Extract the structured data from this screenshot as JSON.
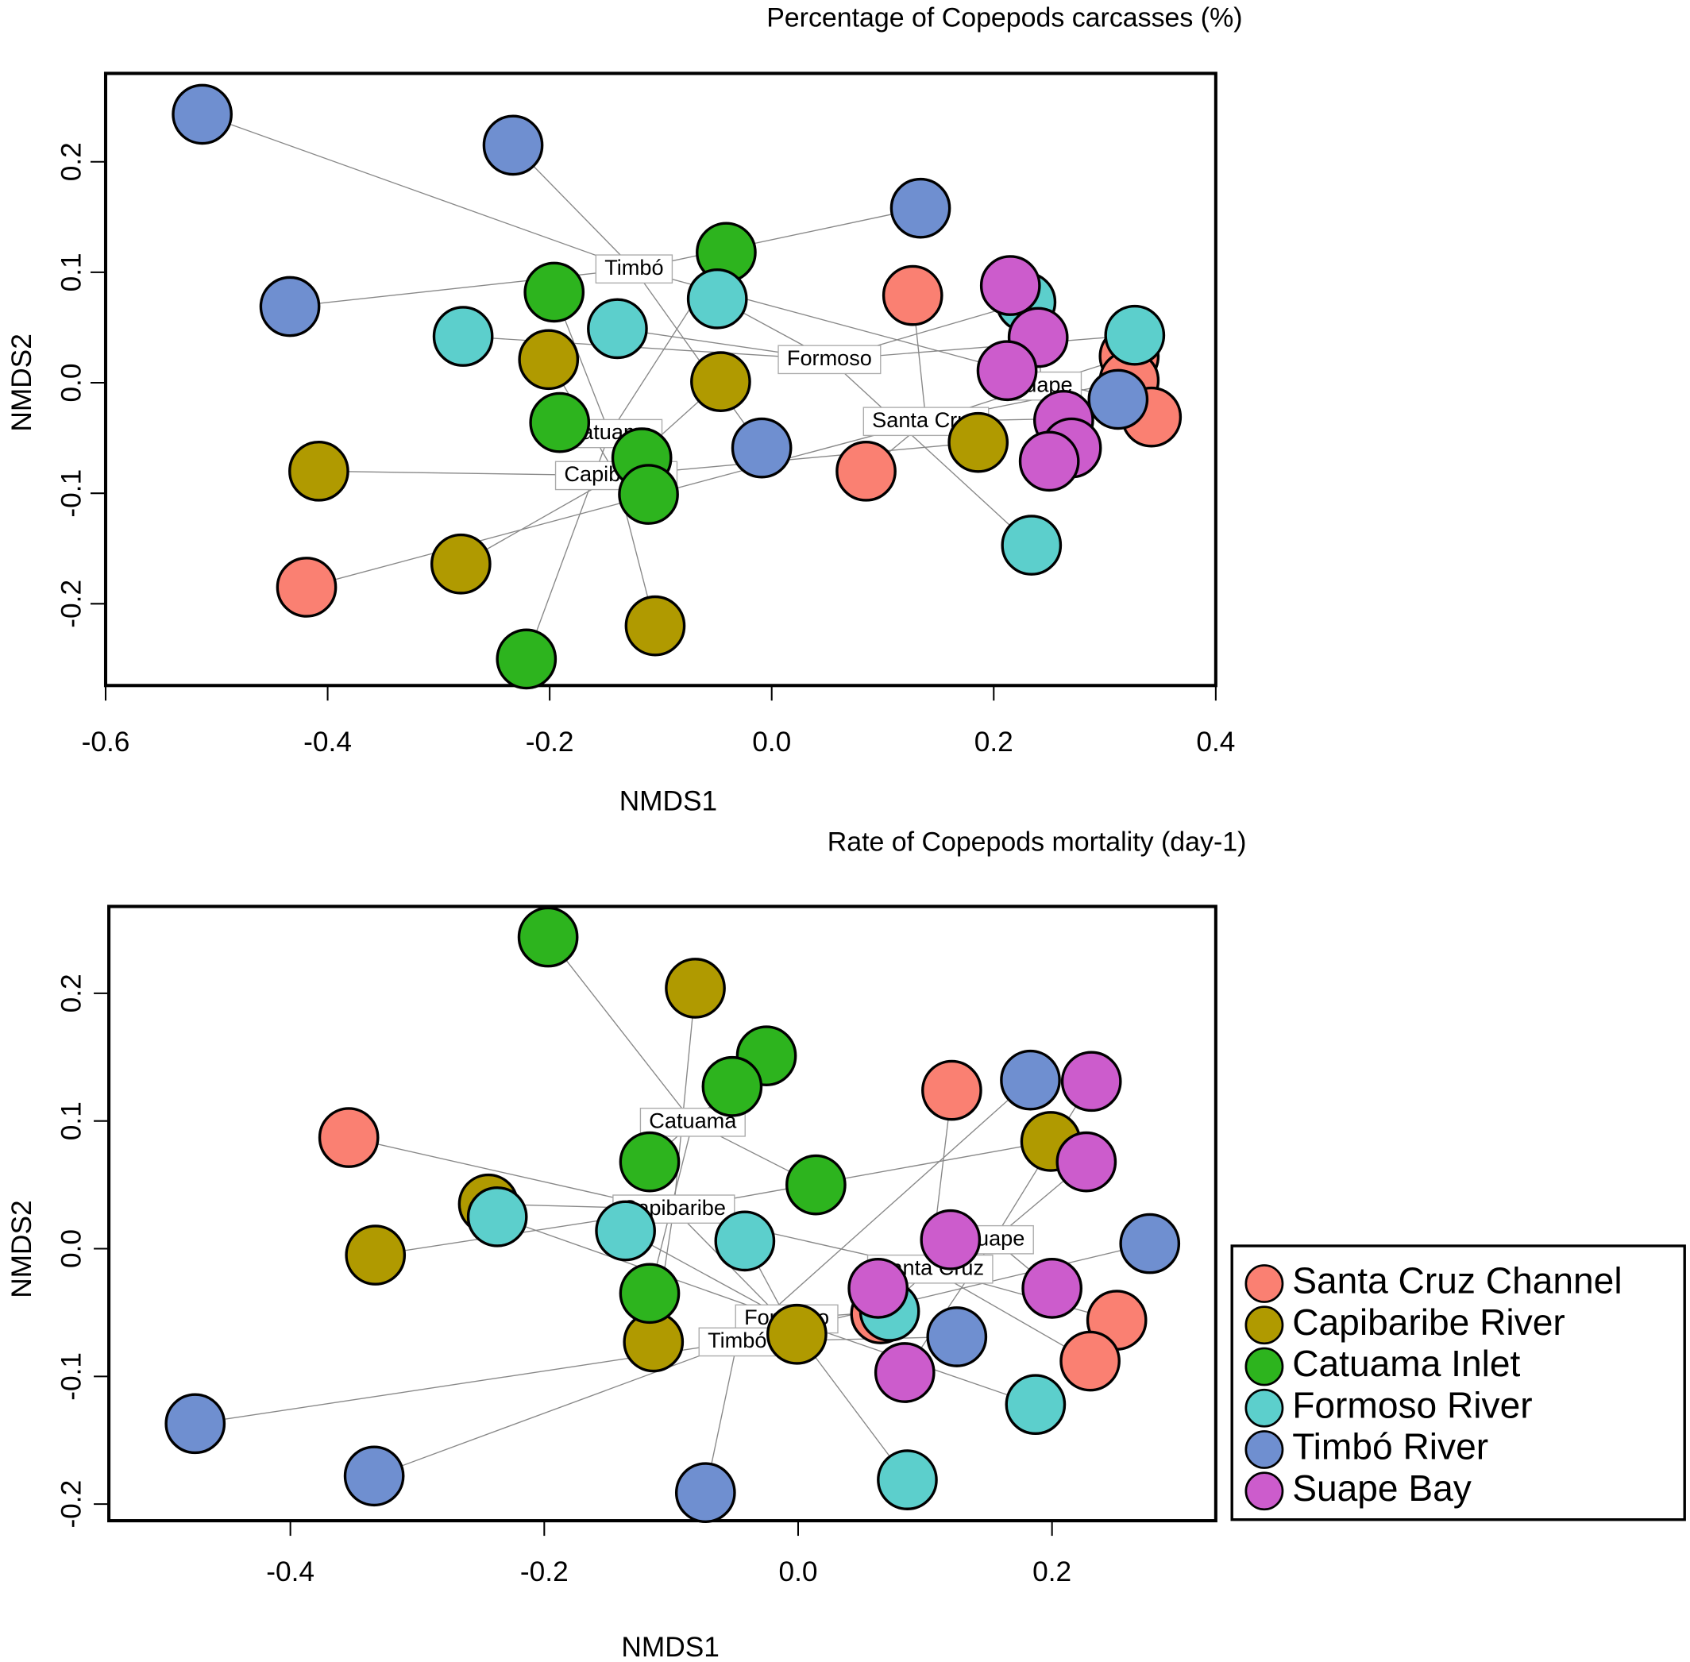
{
  "chart_data": [
    {
      "type": "scatter",
      "title": "Percentage of Copepods carcasses (%)",
      "xlabel": "NMDS1",
      "ylabel": "NMDS2",
      "xlim": [
        -0.6,
        0.4
      ],
      "ylim": [
        -0.274,
        0.28
      ],
      "xticks": [
        -0.6,
        -0.4,
        -0.2,
        {
          "value": 0,
          "label": "0.0"
        },
        0.2,
        0.4
      ],
      "yticks": [
        -0.2,
        -0.1,
        {
          "value": 0,
          "label": "0.0"
        },
        0.1,
        0.2
      ],
      "series": [
        {
          "color": "#fa8072",
          "centroid": {
            "label": "Santa Cruz",
            "x": 0.139,
            "y": -0.035
          },
          "x": [
            0.127,
            0.085,
            -0.419,
            0.322,
            0.322,
            0.342
          ],
          "y": [
            0.079,
            -0.08,
            -0.185,
            0.024,
            0.002,
            -0.031
          ]
        },
        {
          "color": "#b09a00",
          "centroid": {
            "label": "Capibaribe",
            "x": -0.14,
            "y": -0.084
          },
          "x": [
            -0.408,
            -0.28,
            -0.201,
            -0.046,
            -0.105,
            0.186
          ],
          "y": [
            -0.08,
            -0.164,
            0.021,
            0.001,
            -0.22,
            -0.054
          ]
        },
        {
          "color": "#2db41e",
          "centroid": {
            "label": "Catuama",
            "x": -0.146,
            "y": -0.046
          },
          "x": [
            -0.041,
            -0.196,
            -0.191,
            -0.117,
            -0.111,
            -0.221
          ],
          "y": [
            0.118,
            0.082,
            -0.036,
            -0.068,
            -0.101,
            -0.25
          ]
        },
        {
          "color": "#5ccfcc",
          "centroid": {
            "label": "Formoso",
            "x": 0.052,
            "y": 0.021
          },
          "x": [
            -0.278,
            -0.139,
            -0.049,
            0.229,
            0.327,
            0.234
          ],
          "y": [
            0.042,
            0.049,
            0.076,
            0.073,
            0.043,
            -0.147
          ]
        },
        {
          "color": "#6f8fd0",
          "centroid": {
            "label": "Timbó",
            "x": -0.124,
            "y": 0.103
          },
          "x": [
            -0.513,
            -0.233,
            0.134,
            -0.434,
            -0.009,
            0.312
          ],
          "y": [
            0.243,
            0.215,
            0.158,
            0.069,
            -0.059,
            -0.015
          ]
        },
        {
          "color": "#cc5ccc",
          "centroid": {
            "label": "Suape",
            "x": 0.243,
            "y": -0.003
          },
          "x": [
            0.215,
            0.24,
            0.212,
            0.263,
            0.27,
            0.25
          ],
          "y": [
            0.088,
            0.041,
            0.011,
            -0.034,
            -0.059,
            -0.071
          ]
        }
      ]
    },
    {
      "type": "scatter",
      "title": "Rate of Copepods mortality (day-1)",
      "xlabel": "NMDS1",
      "ylabel": "NMDS2",
      "xlim": [
        -0.543,
        0.329
      ],
      "ylim": [
        -0.213,
        0.268
      ],
      "xticks": [
        -0.4,
        -0.2,
        {
          "value": 0,
          "label": "0.0"
        },
        0.2
      ],
      "yticks": [
        -0.2,
        -0.1,
        {
          "value": 0,
          "label": "0.0"
        },
        0.1,
        0.2
      ],
      "legend": "right",
      "series": [
        {
          "name": "Santa Cruz Channel",
          "color": "#fa8072",
          "centroid": {
            "label": "Santa Cruz",
            "x": 0.104,
            "y": -0.016
          },
          "x": [
            -0.354,
            0.121,
            0.251,
            0.23,
            0.065
          ],
          "y": [
            0.087,
            0.124,
            -0.056,
            -0.088,
            -0.051
          ]
        },
        {
          "name": "Capibaribe River",
          "color": "#b09a00",
          "centroid": {
            "label": "Capibaribe",
            "x": -0.098,
            "y": 0.031
          },
          "x": [
            -0.081,
            -0.244,
            -0.333,
            -0.114,
            -0.001,
            0.199
          ],
          "y": [
            0.204,
            0.035,
            -0.005,
            -0.073,
            -0.067,
            0.084
          ]
        },
        {
          "name": "Catuama Inlet",
          "color": "#2db41e",
          "centroid": {
            "label": "Catuama",
            "x": -0.083,
            "y": 0.099
          },
          "x": [
            -0.197,
            -0.025,
            -0.052,
            -0.117,
            0.014,
            -0.117
          ],
          "y": [
            0.244,
            0.151,
            0.127,
            0.068,
            0.05,
            -0.035
          ]
        },
        {
          "name": "Formoso River",
          "color": "#5ccfcc",
          "centroid": {
            "label": "Formoso",
            "x": -0.009,
            "y": -0.055
          },
          "x": [
            -0.237,
            -0.136,
            -0.042,
            0.072,
            0.187,
            0.086
          ],
          "y": [
            0.025,
            0.014,
            0.006,
            -0.049,
            -0.122,
            -0.181
          ]
        },
        {
          "name": "Timbó River",
          "color": "#6f8fd0",
          "centroid": {
            "label": "Timbó",
            "x": -0.048,
            "y": -0.073
          },
          "x": [
            -0.475,
            -0.334,
            -0.073,
            0.125,
            0.183,
            0.277
          ],
          "y": [
            -0.137,
            -0.178,
            -0.191,
            -0.069,
            0.132,
            0.004
          ]
        },
        {
          "name": "Suape Bay",
          "color": "#cc5ccc",
          "centroid": {
            "label": "Suape",
            "x": 0.154,
            "y": 0.007
          },
          "x": [
            0.231,
            0.227,
            0.12,
            0.2,
            0.063,
            0.084
          ],
          "y": [
            0.131,
            0.068,
            0.007,
            -0.031,
            -0.031,
            -0.097
          ]
        }
      ]
    }
  ]
}
